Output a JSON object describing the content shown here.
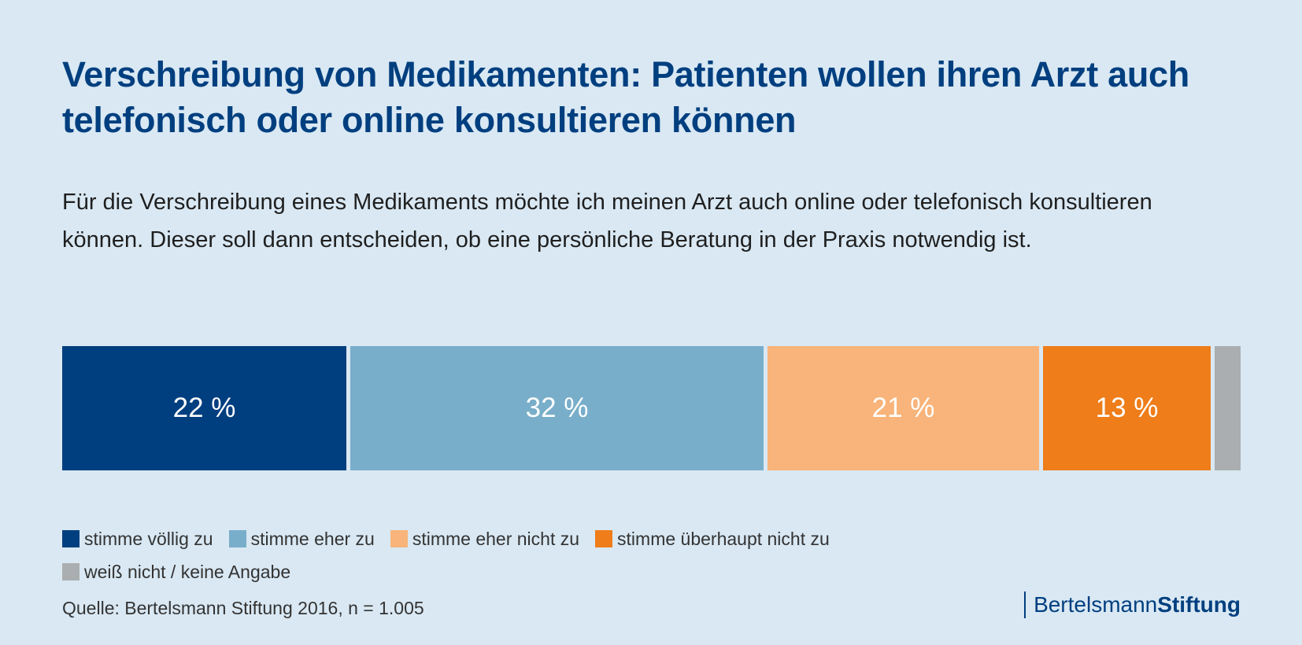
{
  "title": "Verschreibung von Medikamenten: Patienten wollen ihren Arzt auch telefonisch oder online konsultieren können",
  "subtitle": "Für die Verschreibung eines Medikaments möchte ich meinen Arzt auch online oder telefonisch konsultieren können. Dieser soll dann entscheiden, ob eine persönliche Beratung in der Praxis notwendig ist.",
  "source": "Quelle: Bertelsmann Stiftung 2016, n = 1.005",
  "logo": {
    "part1": "Bertelsmann",
    "part2": "Stiftung"
  },
  "colors": {
    "background": "#d9e8f3",
    "title": "#003f7f",
    "segment_gap": "#d9e8f3"
  },
  "chart_data": {
    "type": "bar",
    "orientation": "horizontal-stacked-100",
    "title": "Verschreibung von Medikamenten: Patienten wollen ihren Arzt auch telefonisch oder online konsultieren können",
    "series": [
      {
        "name": "stimme völlig zu",
        "value": 22,
        "label": "22 %",
        "color": "#003f7f"
      },
      {
        "name": "stimme eher zu",
        "value": 32,
        "label": "32 %",
        "color": "#78aeca"
      },
      {
        "name": "stimme eher nicht zu",
        "value": 21,
        "label": "21 %",
        "color": "#f8b47a"
      },
      {
        "name": "stimme überhaupt nicht zu",
        "value": 13,
        "label": "13 %",
        "color": "#ee7d1a"
      },
      {
        "name": "weiß nicht / keine Angabe",
        "value": 2,
        "label": "",
        "color": "#aaaeb0"
      }
    ],
    "unit": "%",
    "legend_position": "bottom-left"
  }
}
